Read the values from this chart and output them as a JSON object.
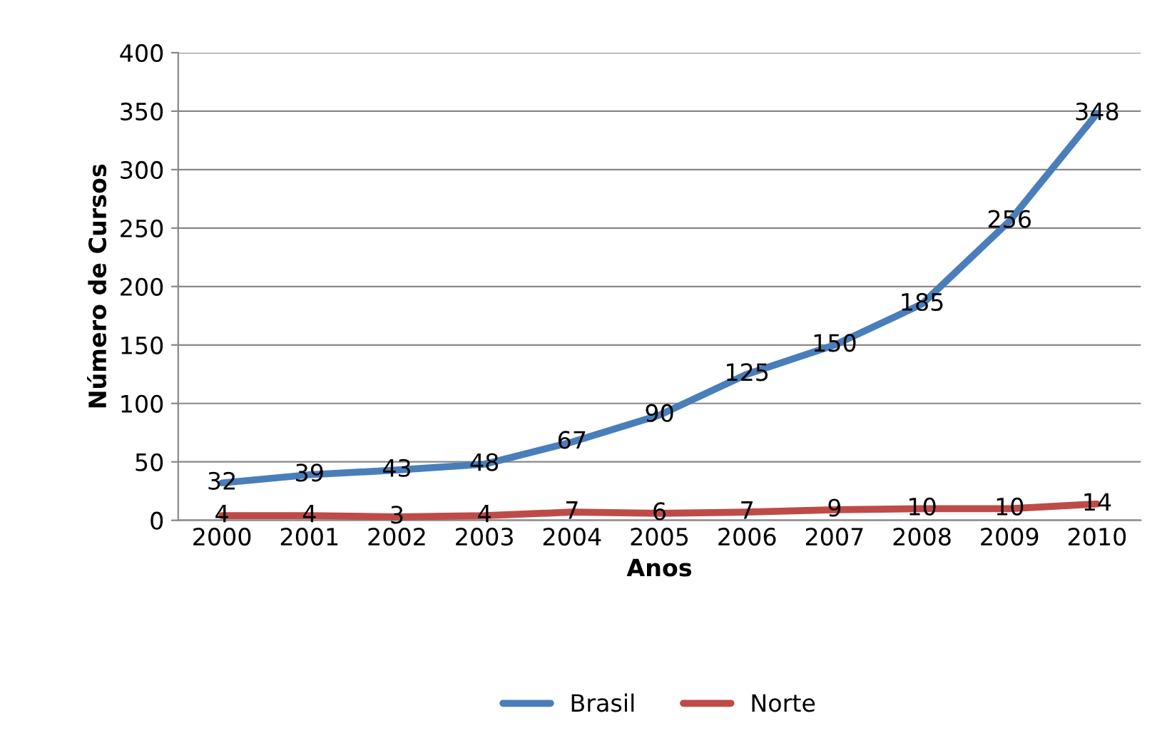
{
  "chart_data": {
    "type": "line",
    "xlabel": "Anos",
    "ylabel": "Número de Cursos",
    "categories": [
      "2000",
      "2001",
      "2002",
      "2003",
      "2004",
      "2005",
      "2006",
      "2007",
      "2008",
      "2009",
      "2010"
    ],
    "series": [
      {
        "name": "Brasil",
        "color": "#4a7ebb",
        "values": [
          32,
          39,
          43,
          48,
          67,
          90,
          125,
          150,
          185,
          256,
          348
        ]
      },
      {
        "name": "Norte",
        "color": "#be4b48",
        "values": [
          4,
          4,
          3,
          4,
          7,
          6,
          7,
          9,
          10,
          10,
          14
        ]
      }
    ],
    "ylim": [
      0,
      400
    ],
    "yticks": [
      0,
      50,
      100,
      150,
      200,
      250,
      300,
      350,
      400
    ],
    "grid": "y",
    "legend": "bottom",
    "data_labels": true,
    "marker": "none",
    "line_style": "solid"
  }
}
